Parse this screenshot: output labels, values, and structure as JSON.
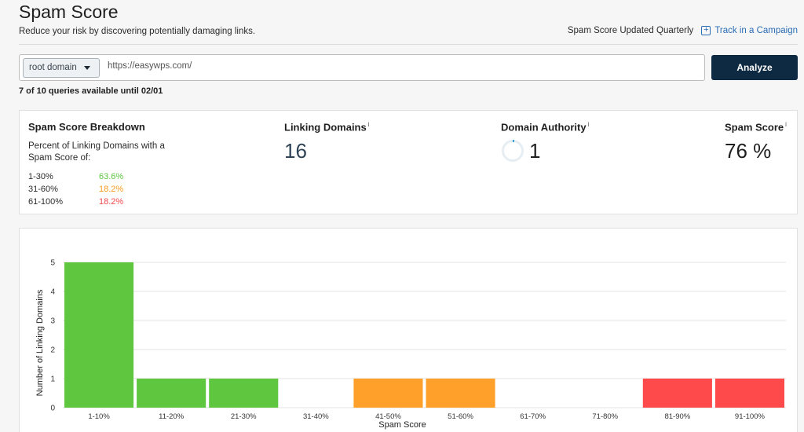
{
  "header": {
    "title": "Spam Score",
    "subtitle": "Reduce your risk by discovering potentially damaging links.",
    "updated": "Spam Score Updated Quarterly",
    "track_label": "Track in a Campaign"
  },
  "search": {
    "scope": "root domain",
    "url": "https://easywps.com/",
    "analyze_label": "Analyze",
    "queries": "7 of 10 queries available until 02/01"
  },
  "breakdown": {
    "title": "Spam Score Breakdown",
    "description": "Percent of Linking Domains with a Spam Score of:",
    "rows": [
      {
        "range": "1-30%",
        "pct": "63.6%",
        "color": "#5cc53f"
      },
      {
        "range": "31-60%",
        "pct": "18.2%",
        "color": "#f89c1c"
      },
      {
        "range": "61-100%",
        "pct": "18.2%",
        "color": "#f04848"
      }
    ]
  },
  "stats": {
    "linking_domains_label": "Linking Domains",
    "linking_domains_value": "16",
    "domain_authority_label": "Domain Authority",
    "domain_authority_value": "1",
    "spam_score_label": "Spam Score",
    "spam_score_value": "76 %",
    "info_icon": "i"
  },
  "colors": {
    "low": "#5ec63f",
    "medium": "#fea02a",
    "high": "#fe4a4a",
    "accent": "#0d2a42",
    "link": "#2a6db5"
  },
  "chart_data": {
    "type": "bar",
    "categories": [
      "1-10%",
      "11-20%",
      "21-30%",
      "31-40%",
      "41-50%",
      "51-60%",
      "61-70%",
      "71-80%",
      "81-90%",
      "91-100%"
    ],
    "values": [
      5,
      1,
      1,
      0,
      1,
      1,
      0,
      0,
      1,
      1
    ],
    "bar_colors": [
      "low",
      "low",
      "low",
      "low",
      "medium",
      "medium",
      "high",
      "high",
      "high",
      "high"
    ],
    "xlabel": "Spam Score",
    "ylabel": "Number of Linking Domains",
    "ylim": [
      0,
      5
    ],
    "yticks": [
      0,
      1,
      2,
      3,
      4,
      5
    ],
    "grid": true
  }
}
